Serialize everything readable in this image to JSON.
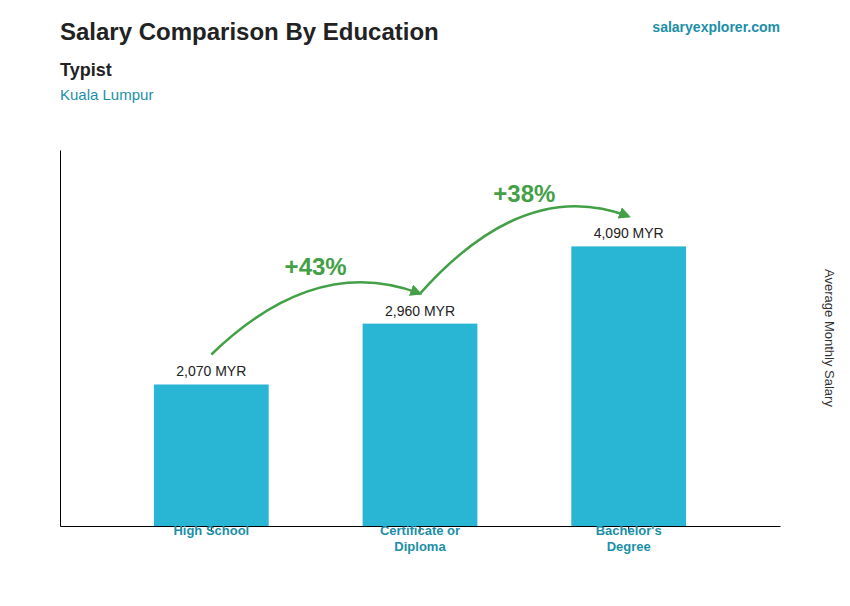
{
  "chart_data": {
    "type": "bar",
    "title": "Salary Comparison By Education",
    "subtitle": [
      "Typist",
      "Kuala Lumpur"
    ],
    "source": "salaryexplorer.com",
    "ylabel": "Average Monthly Salary",
    "categories": [
      "High School",
      "Certificate or\nDiploma",
      "Bachelor's\nDegree"
    ],
    "values": [
      2070,
      2960,
      4090
    ],
    "value_labels": [
      "2,070 MYR",
      "2,960 MYR",
      "4,090 MYR"
    ],
    "data_labels": true,
    "annotations": [
      "+43%",
      "+38%"
    ],
    "color": "#29b6d4",
    "ylim": [
      0,
      5500
    ],
    "tick_labels": "x"
  }
}
